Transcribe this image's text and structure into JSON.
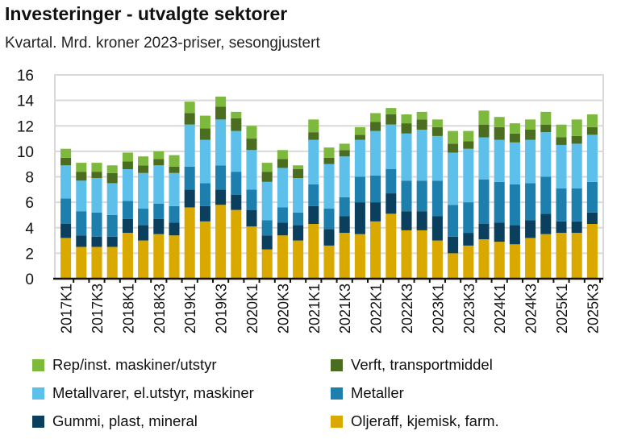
{
  "chart_data": {
    "type": "bar",
    "stacked": true,
    "title": "Investeringer - utvalgte sektorer",
    "subtitle": "Kvartal. Mrd. kroner 2023-priser, sesongjustert",
    "xlabel": "",
    "ylabel": "",
    "ylim": [
      0,
      16
    ],
    "yticks": [
      0,
      2,
      4,
      6,
      8,
      10,
      12,
      14,
      16
    ],
    "grid": true,
    "legend_position": "bottom",
    "categories": [
      "2017K1",
      "2017K2",
      "2017K3",
      "2017K4",
      "2018K1",
      "2018K2",
      "2018K3",
      "2018K4",
      "2019K1",
      "2019K2",
      "2019K3",
      "2019K4",
      "2020K1",
      "2020K2",
      "2020K3",
      "2020K4",
      "2021K1",
      "2021K2",
      "2021K3",
      "2021K4",
      "2022K1",
      "2022K2",
      "2022K3",
      "2022K4",
      "2023K1",
      "2023K2",
      "2023K3",
      "2023K4",
      "2024K1",
      "2024K2",
      "2024K3",
      "2024K4",
      "2025K1",
      "2025K2",
      "2025K3"
    ],
    "series": [
      {
        "name": "Oljeraff, kjemisk, farm.",
        "color": "#d9a900",
        "values": [
          3.2,
          2.5,
          2.5,
          2.5,
          3.6,
          3.0,
          3.5,
          3.4,
          5.6,
          4.5,
          5.8,
          5.4,
          4.1,
          2.3,
          3.4,
          3.0,
          4.3,
          2.6,
          3.6,
          3.5,
          4.5,
          5.1,
          3.8,
          3.8,
          3.0,
          2.0,
          2.6,
          3.1,
          2.9,
          2.7,
          3.2,
          3.5,
          3.6,
          3.6,
          4.3
        ]
      },
      {
        "name": "Gummi, plast, mineral",
        "color": "#0b3f5e",
        "values": [
          1.1,
          0.9,
          0.8,
          0.8,
          1.1,
          1.2,
          1.2,
          1.0,
          1.4,
          1.2,
          1.2,
          1.2,
          1.3,
          1.1,
          1.0,
          1.2,
          1.4,
          1.3,
          1.3,
          2.5,
          1.5,
          1.6,
          1.5,
          1.5,
          1.9,
          1.3,
          1.0,
          1.2,
          1.5,
          1.5,
          1.4,
          1.6,
          0.9,
          0.9,
          0.9
        ]
      },
      {
        "name": "Metaller",
        "color": "#1c7fad",
        "values": [
          2.0,
          1.9,
          1.9,
          1.7,
          1.4,
          1.3,
          1.2,
          1.3,
          1.8,
          1.8,
          1.9,
          1.8,
          1.6,
          1.2,
          1.2,
          1.0,
          1.7,
          1.6,
          1.5,
          2.0,
          2.1,
          1.9,
          2.4,
          2.4,
          2.8,
          2.5,
          2.4,
          3.5,
          3.2,
          3.2,
          2.9,
          2.9,
          2.6,
          2.6,
          2.4
        ]
      },
      {
        "name": "Metallvarer, el.utstyr, maskiner",
        "color": "#5dc0ea",
        "values": [
          2.6,
          2.4,
          2.7,
          2.5,
          2.5,
          2.8,
          3.0,
          2.6,
          3.3,
          3.4,
          3.6,
          3.2,
          3.1,
          3.0,
          3.1,
          2.7,
          3.5,
          3.5,
          3.2,
          2.9,
          3.5,
          3.5,
          3.7,
          4.0,
          3.5,
          4.1,
          4.2,
          3.3,
          3.3,
          3.3,
          3.4,
          3.5,
          3.4,
          3.5,
          3.7
        ]
      },
      {
        "name": "Verft, transportmiddel",
        "color": "#4b6d1f",
        "values": [
          0.6,
          0.7,
          0.5,
          0.8,
          0.6,
          0.6,
          0.5,
          0.5,
          0.9,
          0.9,
          1.0,
          1.0,
          0.9,
          0.8,
          0.7,
          0.7,
          0.6,
          0.5,
          0.5,
          0.4,
          0.7,
          0.8,
          0.8,
          0.8,
          0.7,
          0.7,
          0.6,
          1.0,
          1.0,
          0.7,
          0.8,
          0.6,
          0.6,
          0.6,
          0.6
        ]
      },
      {
        "name": "Rep/inst. maskiner/utstyr",
        "color": "#7cb93d",
        "values": [
          0.7,
          0.7,
          0.7,
          0.6,
          0.7,
          0.7,
          0.6,
          0.9,
          0.9,
          1.0,
          0.8,
          0.5,
          1.0,
          0.7,
          0.7,
          0.3,
          1.0,
          0.8,
          0.5,
          0.6,
          0.7,
          0.5,
          0.7,
          0.6,
          0.6,
          1.0,
          0.8,
          1.1,
          0.8,
          0.8,
          0.8,
          1.0,
          1.0,
          1.3,
          1.0
        ]
      }
    ],
    "legend_order": [
      5,
      4,
      3,
      2,
      1,
      0
    ]
  }
}
